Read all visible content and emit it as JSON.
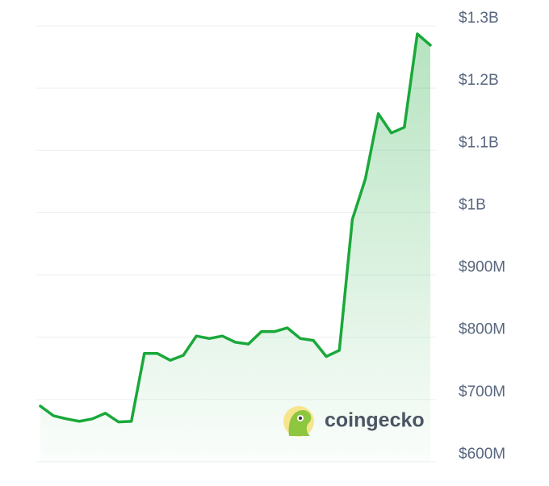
{
  "chart_data": {
    "type": "line",
    "categories": [
      null,
      null,
      null,
      null,
      null,
      null,
      null,
      null,
      null,
      null,
      null,
      null,
      null,
      null,
      null,
      null,
      null,
      null,
      null,
      null,
      null,
      null,
      null,
      null,
      null,
      null,
      null,
      null,
      null,
      null,
      null
    ],
    "values": [
      689500000,
      674000000,
      669000000,
      665000000,
      669000000,
      678000000,
      664000000,
      665000000,
      774000000,
      774000000,
      763000000,
      771000000,
      802000000,
      798000000,
      802000000,
      792000000,
      789000000,
      809000000,
      809000000,
      815000000,
      798000000,
      795000000,
      769000000,
      779000000,
      989000000,
      1054000000,
      1159000000,
      1128000000,
      1137000000,
      1287000000,
      1269000000
    ],
    "color": "#1aa83a",
    "ylim": [
      600000000,
      1300000000
    ],
    "yticks": [
      {
        "value": 600000000,
        "label": "$600M"
      },
      {
        "value": 700000000,
        "label": "$700M"
      },
      {
        "value": 800000000,
        "label": "$800M"
      },
      {
        "value": 900000000,
        "label": "$900M"
      },
      {
        "value": 1000000000,
        "label": "$1B"
      },
      {
        "value": 1100000000,
        "label": "$1.1B"
      },
      {
        "value": 1200000000,
        "label": "$1.2B"
      },
      {
        "value": 1300000000,
        "label": "$1.3B"
      }
    ],
    "grid": true,
    "annotation": "coingecko"
  }
}
